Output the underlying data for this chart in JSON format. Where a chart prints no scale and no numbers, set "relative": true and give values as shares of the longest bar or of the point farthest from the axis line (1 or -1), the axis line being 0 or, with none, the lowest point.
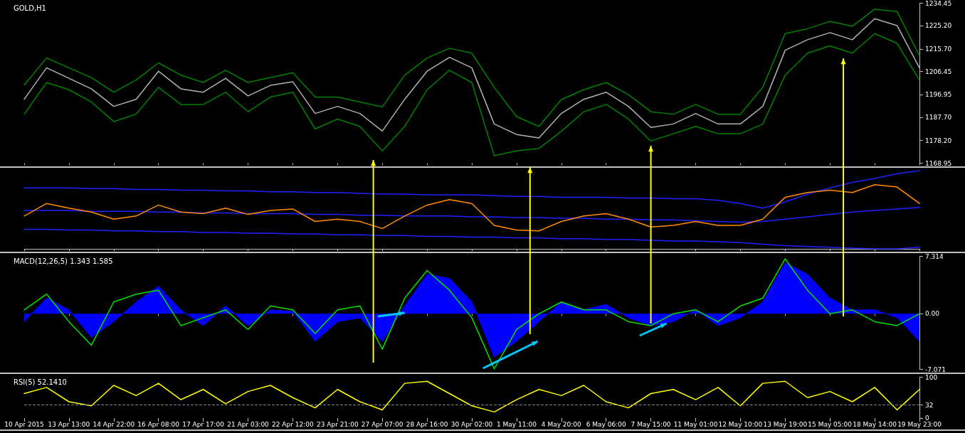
{
  "chart_data": [
    {
      "type": "line",
      "title": "GOLD,H1",
      "tick_labels": "y",
      "marker": "none",
      "categories": [
        null,
        null,
        null,
        null,
        null,
        null,
        null,
        null,
        null,
        null,
        null,
        null,
        null,
        null,
        null,
        null,
        null,
        null,
        null,
        null,
        null,
        null,
        null,
        null,
        null,
        null,
        null,
        null,
        null,
        null,
        null,
        null,
        null,
        null,
        null,
        null,
        null,
        null,
        null,
        null,
        null
      ],
      "ylim": [
        1168.95,
        1234.45
      ],
      "yticks": [
        1168.95,
        {
          "value": 1178.2,
          "label": "1178.20"
        },
        {
          "value": 1187.7,
          "label": "1187.70"
        },
        1196.95,
        1206.45,
        {
          "value": 1215.7,
          "label": "1215.70"
        },
        {
          "value": 1225.2,
          "label": "1225.20"
        },
        1234.45
      ],
      "series": [
        {
          "color": "#b0b0b0",
          "values": [
            1195.1,
            1208,
            1203.7,
            1199.4,
            1192.2,
            1195.1,
            1206.6,
            1199.4,
            1198,
            1203.7,
            1196.5,
            1200.8,
            1202.3,
            1189.3,
            1192.2,
            1189.3,
            1182.1,
            1195.1,
            1206.6,
            1212.3,
            1208,
            1185,
            1180.7,
            1179.3,
            1189.3,
            1195.1,
            1198,
            1192.2,
            1183.6,
            1185,
            1189.3,
            1185,
            1185,
            1192.2,
            1215.2,
            1219.5,
            1222.4,
            1219.5,
            1228.1,
            1225.3,
            1208
          ]
        },
        {
          "color": "#008000",
          "values": [
            1201,
            1212,
            1208,
            1204,
            1198,
            1203,
            1210,
            1205,
            1202,
            1207,
            1202,
            1204,
            1206,
            1196,
            1196,
            1194,
            1192,
            1205,
            1212,
            1216,
            1214,
            1200,
            1188,
            1184,
            1195,
            1199,
            1202,
            1197,
            1190,
            1189,
            1193,
            1189,
            1189,
            1200,
            1222,
            1224,
            1227,
            1225,
            1232,
            1231,
            1213
          ]
        },
        {
          "color": "#008000",
          "values": [
            1189,
            1202,
            1199,
            1194,
            1186,
            1189,
            1200,
            1193,
            1193,
            1198,
            1190,
            1196,
            1198,
            1183,
            1187,
            1184,
            1174,
            1184,
            1199,
            1207,
            1202,
            1172,
            1174,
            1175,
            1182,
            1190,
            1193,
            1187,
            1178,
            1181,
            1184,
            1181,
            1181,
            1185,
            1205,
            1214,
            1217,
            1214,
            1222,
            1218,
            1203
          ]
        }
      ]
    },
    {
      "type": "line",
      "relative": true,
      "tick_labels": false,
      "marker": "none",
      "categories": [
        null,
        null,
        null,
        null,
        null,
        null,
        null,
        null,
        null,
        null,
        null,
        null,
        null,
        null,
        null,
        null,
        null,
        null,
        null,
        null,
        null,
        null,
        null,
        null,
        null,
        null,
        null,
        null,
        null,
        null,
        null,
        null,
        null,
        null,
        null,
        null,
        null,
        null,
        null,
        null,
        null
      ],
      "series": [
        {
          "color": "#2020ff",
          "values": [
            0.78,
            0.78,
            0.78,
            0.77,
            0.77,
            0.76,
            0.76,
            0.75,
            0.75,
            0.74,
            0.74,
            0.73,
            0.73,
            0.72,
            0.72,
            0.71,
            0.7,
            0.7,
            0.69,
            0.69,
            0.69,
            0.68,
            0.67,
            0.67,
            0.66,
            0.66,
            0.66,
            0.65,
            0.65,
            0.64,
            0.64,
            0.62,
            0.58,
            0.52,
            0.6,
            0.7,
            0.78,
            0.85,
            0.9,
            0.96,
            1.0
          ]
        },
        {
          "color": "#2020ff",
          "values": [
            0.49,
            0.49,
            0.49,
            0.48,
            0.48,
            0.48,
            0.47,
            0.47,
            0.46,
            0.46,
            0.45,
            0.45,
            0.45,
            0.44,
            0.44,
            0.43,
            0.43,
            0.42,
            0.42,
            0.42,
            0.41,
            0.41,
            0.4,
            0.4,
            0.39,
            0.39,
            0.38,
            0.38,
            0.37,
            0.37,
            0.36,
            0.35,
            0.34,
            0.35,
            0.38,
            0.41,
            0.44,
            0.47,
            0.49,
            0.51,
            0.53
          ]
        },
        {
          "color": "#2020ff",
          "values": [
            0.25,
            0.25,
            0.24,
            0.24,
            0.23,
            0.23,
            0.22,
            0.22,
            0.21,
            0.21,
            0.2,
            0.2,
            0.19,
            0.19,
            0.18,
            0.18,
            0.17,
            0.17,
            0.16,
            0.16,
            0.15,
            0.15,
            0.14,
            0.14,
            0.13,
            0.13,
            0.12,
            0.12,
            0.11,
            0.1,
            0.1,
            0.09,
            0.08,
            0.06,
            0.04,
            0.03,
            0.02,
            0.01,
            0.0,
            0.0,
            0.02
          ]
        },
        {
          "color": "#ff8c00",
          "values": [
            0.42,
            0.58,
            0.52,
            0.47,
            0.38,
            0.42,
            0.56,
            0.47,
            0.45,
            0.52,
            0.44,
            0.49,
            0.51,
            0.35,
            0.38,
            0.35,
            0.26,
            0.42,
            0.56,
            0.63,
            0.58,
            0.3,
            0.24,
            0.23,
            0.35,
            0.42,
            0.45,
            0.38,
            0.28,
            0.3,
            0.35,
            0.3,
            0.3,
            0.38,
            0.66,
            0.72,
            0.75,
            0.72,
            0.82,
            0.79,
            0.58
          ]
        }
      ]
    },
    {
      "type": "line",
      "title": "MACD(12,26,5) 1.343 1.585",
      "tick_labels": "y",
      "marker": "none",
      "categories": [
        null,
        null,
        null,
        null,
        null,
        null,
        null,
        null,
        null,
        null,
        null,
        null,
        null,
        null,
        null,
        null,
        null,
        null,
        null,
        null,
        null,
        null,
        null,
        null,
        null,
        null,
        null,
        null,
        null,
        null,
        null,
        null,
        null,
        null,
        null,
        null,
        null,
        null,
        null,
        null,
        null
      ],
      "ylim": [
        -7.071,
        7.314
      ],
      "yticks": [
        -7.071,
        {
          "value": 0,
          "label": "0.00"
        },
        7.314
      ],
      "series": [
        {
          "type": "area",
          "color": "#0000ff",
          "values": [
            -1.0,
            2.0,
            0.5,
            -3.0,
            -1.0,
            1.5,
            3.5,
            0.5,
            -1.5,
            1.0,
            -1.5,
            0.5,
            0.3,
            -3.5,
            -1.0,
            -0.5,
            -3.5,
            1.0,
            5.0,
            4.5,
            1.5,
            -5.5,
            -3.5,
            -1.0,
            1.5,
            0.5,
            1.2,
            -0.5,
            -1.5,
            -1.0,
            0.5,
            -1.5,
            -0.5,
            1.5,
            6.5,
            5.0,
            2.0,
            0.5,
            0.5,
            -0.5,
            -3.5
          ]
        },
        {
          "color": "#00e000",
          "values": [
            0.5,
            2.5,
            -1.0,
            -4.0,
            1.5,
            2.5,
            3.0,
            -1.5,
            -0.5,
            0.5,
            -2.0,
            1.0,
            0.5,
            -2.5,
            0.5,
            1.0,
            -4.5,
            2.0,
            5.5,
            3.0,
            -0.5,
            -7.0,
            -2.0,
            0.0,
            1.5,
            0.5,
            0.5,
            -1.0,
            -1.5,
            0.0,
            0.5,
            -1.0,
            1.0,
            2.0,
            7.0,
            3.0,
            0.0,
            0.5,
            -1.0,
            -1.5,
            0.0
          ]
        }
      ]
    },
    {
      "type": "line",
      "title": "RSI(5) 52.1410",
      "marker": "none",
      "categories": [
        "10 Apr 2015",
        null,
        "13 Apr 13:00",
        null,
        "14 Apr 22:00",
        null,
        "16 Apr 08:00",
        null,
        "17 Apr 17:00",
        null,
        "21 Apr 03:00",
        null,
        "22 Apr 12:00",
        null,
        "23 Apr 21:00",
        null,
        "27 Apr 07:00",
        null,
        "28 Apr 16:00",
        null,
        "30 Apr 02:00",
        null,
        "1 May 11:00",
        null,
        "4 May 20:00",
        null,
        "6 May 06:00",
        null,
        "7 May 15:00",
        null,
        "11 May 01:00",
        null,
        "12 May 10:00",
        null,
        "13 May 19:00",
        null,
        "15 May 05:00",
        null,
        "18 May 14:00",
        null,
        "19 May 23:00"
      ],
      "ylim": [
        0,
        100
      ],
      "yticks": [
        0,
        32,
        100
      ],
      "ref_lines": [
        {
          "axis": "y",
          "value": 32,
          "color": "#808080",
          "line_style": "dashed"
        }
      ],
      "series": [
        {
          "color": "#ffff00",
          "values": [
            60,
            75,
            40,
            30,
            80,
            55,
            85,
            45,
            70,
            35,
            65,
            80,
            50,
            25,
            70,
            40,
            20,
            85,
            90,
            60,
            30,
            15,
            45,
            70,
            55,
            80,
            40,
            25,
            60,
            70,
            45,
            75,
            30,
            85,
            90,
            50,
            65,
            40,
            75,
            20,
            70
          ]
        }
      ]
    }
  ]
}
